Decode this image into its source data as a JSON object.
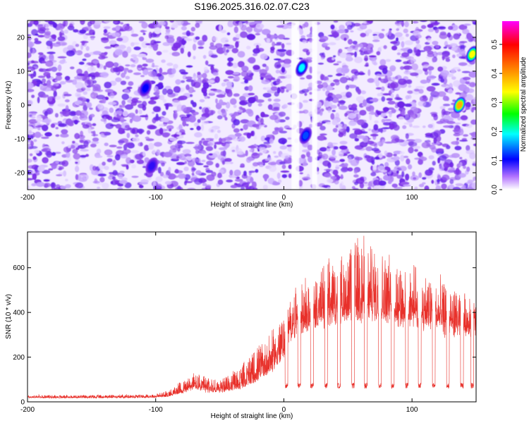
{
  "title": "S196.2025.316.02.07.C23",
  "chart_data": [
    {
      "type": "heatmap",
      "xlabel": "Height of straight line (km)",
      "ylabel": "Frequency (Hz)",
      "xlim": [
        -200,
        150
      ],
      "ylim": [
        -25,
        25
      ],
      "xticks": [
        -200,
        -100,
        0,
        100
      ],
      "yticks": [
        -20,
        -10,
        0,
        10,
        20
      ],
      "colorbar": {
        "label": "Normalized spectral amplitude",
        "range": [
          0.0,
          0.58
        ],
        "ticks": [
          0.0,
          0.1,
          0.2,
          0.3,
          0.4,
          0.5
        ],
        "colors": [
          "#ffffff",
          "#8a2be2",
          "#0000ff",
          "#00ffff",
          "#00ff00",
          "#ffff00",
          "#ff8000",
          "#ff0000",
          "#ff00ff"
        ]
      },
      "background_amplitude": [
        0.0,
        0.1
      ],
      "blank_bands_x": [
        [
          6,
          12
        ],
        [
          22,
          26
        ]
      ],
      "hotspots": [
        {
          "x": 14,
          "y": 11,
          "amplitude": 0.25
        },
        {
          "x": 17,
          "y": -9,
          "amplitude": 0.2
        },
        {
          "x": 137,
          "y": 0,
          "amplitude": 0.45
        },
        {
          "x": 147,
          "y": 15,
          "amplitude": 0.4
        },
        {
          "x": -108,
          "y": 5,
          "amplitude": 0.18
        },
        {
          "x": -103,
          "y": -18,
          "amplitude": 0.15
        }
      ]
    },
    {
      "type": "line",
      "xlabel": "Height of straight line (km)",
      "ylabel": "SNR (10 * v/v)",
      "xlim": [
        -200,
        150
      ],
      "ylim": [
        0,
        760
      ],
      "xticks": [
        -200,
        -100,
        0,
        100
      ],
      "yticks": [
        0,
        200,
        400,
        600
      ],
      "color": "#e8302a",
      "envelope": {
        "x": [
          -200,
          -150,
          -100,
          -90,
          -80,
          -70,
          -60,
          -50,
          -40,
          -30,
          -20,
          -10,
          0,
          5,
          10,
          20,
          30,
          40,
          50,
          60,
          70,
          80,
          90,
          100,
          110,
          120,
          130,
          140,
          150
        ],
        "base": [
          18,
          18,
          20,
          25,
          40,
          60,
          45,
          45,
          55,
          70,
          100,
          140,
          220,
          300,
          330,
          350,
          360,
          380,
          390,
          400,
          400,
          390,
          380,
          370,
          350,
          330,
          320,
          330,
          320
        ],
        "peak": [
          30,
          30,
          35,
          50,
          90,
          130,
          110,
          100,
          130,
          180,
          250,
          300,
          380,
          440,
          500,
          520,
          600,
          620,
          650,
          740,
          660,
          640,
          620,
          590,
          560,
          540,
          500,
          470,
          450
        ]
      },
      "dips_x": [
        2,
        12,
        22,
        33,
        43,
        54,
        64,
        75,
        85,
        96,
        106,
        117,
        128,
        139,
        147
      ],
      "dip_level": 60
    }
  ]
}
